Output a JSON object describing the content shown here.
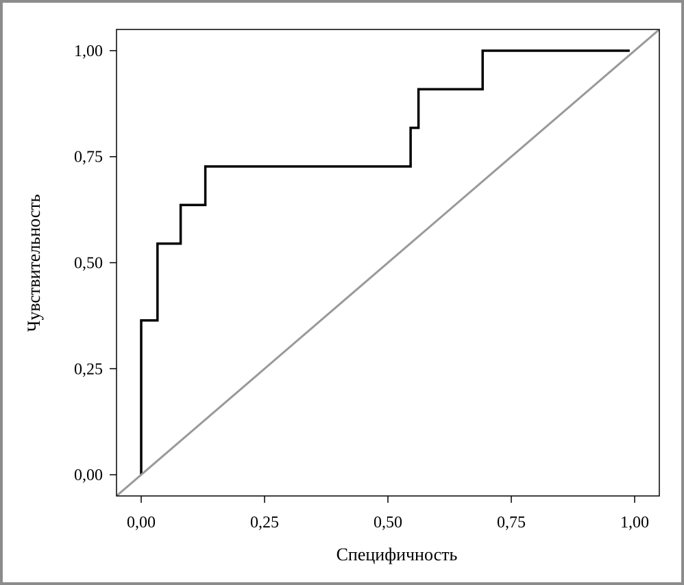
{
  "chart_data": {
    "type": "line",
    "title": "",
    "xlabel": "Специфичность",
    "ylabel": "Чувствительность",
    "xlim": [
      -0.05,
      1.05
    ],
    "ylim": [
      -0.05,
      1.05
    ],
    "x_ticks": [
      {
        "value": 0.0,
        "label": "0,00"
      },
      {
        "value": 0.25,
        "label": "0,25"
      },
      {
        "value": 0.5,
        "label": "0,50"
      },
      {
        "value": 0.75,
        "label": "0,75"
      },
      {
        "value": 1.0,
        "label": "1,00"
      }
    ],
    "y_ticks": [
      {
        "value": 0.0,
        "label": "0,00"
      },
      {
        "value": 0.25,
        "label": "0,25"
      },
      {
        "value": 0.5,
        "label": "0,50"
      },
      {
        "value": 0.75,
        "label": "0,75"
      },
      {
        "value": 1.0,
        "label": "1,00"
      }
    ],
    "grid": false,
    "legend": "none",
    "series": [
      {
        "color": "#000000",
        "step": true,
        "points": [
          [
            0.0,
            0.0
          ],
          [
            0.0,
            0.364
          ],
          [
            0.033,
            0.364
          ],
          [
            0.033,
            0.545
          ],
          [
            0.08,
            0.545
          ],
          [
            0.08,
            0.636
          ],
          [
            0.13,
            0.636
          ],
          [
            0.13,
            0.727
          ],
          [
            0.546,
            0.727
          ],
          [
            0.546,
            0.818
          ],
          [
            0.562,
            0.818
          ],
          [
            0.562,
            0.909
          ],
          [
            0.692,
            0.909
          ],
          [
            0.692,
            1.0
          ],
          [
            0.99,
            1.0
          ]
        ]
      },
      {
        "color": "#999999",
        "step": false,
        "points": [
          [
            -0.05,
            -0.05
          ],
          [
            1.05,
            1.05
          ]
        ]
      }
    ]
  }
}
